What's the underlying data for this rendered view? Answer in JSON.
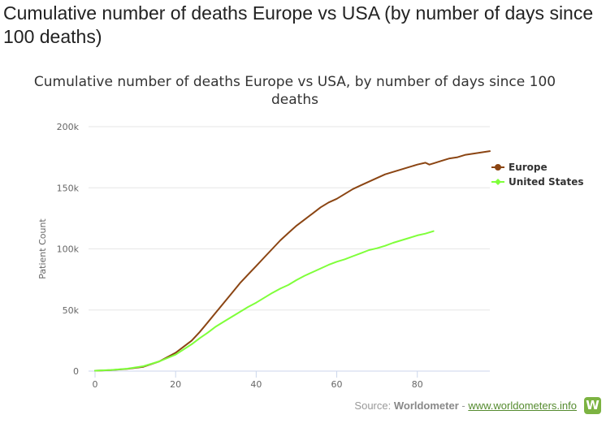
{
  "page": {
    "title": "Cumulative number of deaths Europe vs USA (by number of days since 100 deaths)"
  },
  "source": {
    "prefix": "Source: ",
    "brand": "Worldometer",
    "separator": " - ",
    "link": "www.worldometers.info",
    "logo_letter": "W"
  },
  "chart_data": {
    "type": "line",
    "title": "Cumulative number of deaths Europe vs USA, by number of days since 100 deaths",
    "xlabel": "",
    "ylabel": "Patient Count",
    "xlim": [
      0,
      98
    ],
    "ylim": [
      0,
      200000
    ],
    "x_ticks": [
      0,
      20,
      40,
      60,
      80
    ],
    "x_tick_labels": [
      "0",
      "20",
      "40",
      "60",
      "80"
    ],
    "y_ticks": [
      0,
      50000,
      100000,
      150000,
      200000
    ],
    "y_tick_labels": [
      "0",
      "50k",
      "100k",
      "150k",
      "200k"
    ],
    "grid": "horizontal",
    "legend_position": "right",
    "series": [
      {
        "name": "Europe",
        "color": "#8B4513",
        "marker": "circle",
        "x": [
          0,
          4,
          8,
          12,
          16,
          20,
          24,
          26,
          28,
          30,
          32,
          34,
          36,
          38,
          40,
          42,
          44,
          46,
          48,
          50,
          52,
          54,
          56,
          58,
          60,
          62,
          64,
          66,
          68,
          70,
          72,
          74,
          76,
          78,
          80,
          82,
          83,
          84,
          86,
          88,
          90,
          92,
          94,
          96,
          98
        ],
        "y": [
          300,
          800,
          1800,
          3500,
          8000,
          15000,
          25000,
          32000,
          40000,
          48000,
          56000,
          64000,
          72000,
          79000,
          86000,
          93000,
          100000,
          107000,
          113000,
          119000,
          124000,
          129000,
          134000,
          138000,
          141000,
          145000,
          149000,
          152000,
          155000,
          158000,
          161000,
          163000,
          165000,
          167000,
          169000,
          170500,
          169000,
          170000,
          172000,
          174000,
          175000,
          177000,
          178000,
          179000,
          180000
        ]
      },
      {
        "name": "United States",
        "color": "#7FFF3A",
        "marker": "diamond",
        "x": [
          0,
          4,
          8,
          12,
          16,
          20,
          24,
          26,
          28,
          30,
          32,
          34,
          36,
          38,
          40,
          42,
          44,
          46,
          48,
          50,
          52,
          54,
          56,
          58,
          60,
          62,
          64,
          66,
          68,
          70,
          72,
          74,
          76,
          78,
          80,
          82,
          84
        ],
        "y": [
          300,
          900,
          2000,
          4000,
          8000,
          13500,
          22000,
          27000,
          31500,
          36500,
          40500,
          44500,
          48500,
          52500,
          56000,
          60000,
          64000,
          67500,
          70500,
          74500,
          78000,
          81000,
          84000,
          87000,
          89500,
          91500,
          94000,
          96500,
          99000,
          100500,
          102500,
          105000,
          107000,
          109000,
          111000,
          112500,
          114500
        ]
      }
    ]
  }
}
